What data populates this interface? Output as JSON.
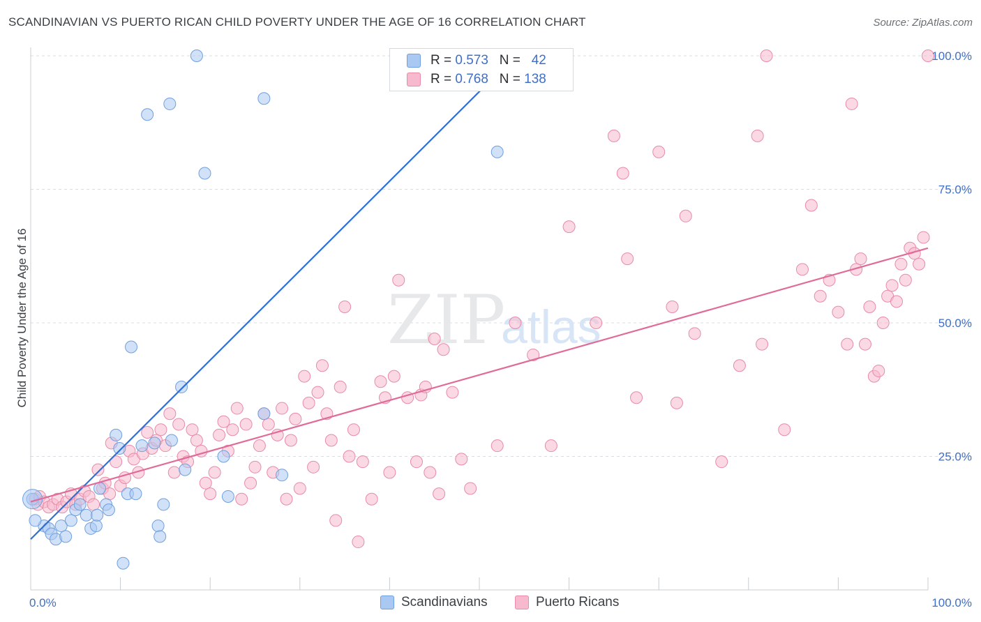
{
  "header": {
    "title": "SCANDINAVIAN VS PUERTO RICAN CHILD POVERTY UNDER THE AGE OF 16 CORRELATION CHART",
    "source": "Source: ZipAtlas.com"
  },
  "watermark": {
    "zip": "ZIP",
    "atlas": "atlas"
  },
  "legend_top": {
    "rows": [
      {
        "r_label": "R = ",
        "r_value": "0.573",
        "n_label": "N = ",
        "n_value": "42"
      },
      {
        "r_label": "R = ",
        "r_value": "0.768",
        "n_label": "N = ",
        "n_value": "138"
      }
    ]
  },
  "legend_bottom": {
    "items": [
      "Scandinavians",
      "Puerto Ricans"
    ]
  },
  "colors": {
    "blue_fill": "#a9c9f2",
    "blue_edge": "#6f9fe0",
    "blue_line": "#2f6fd6",
    "pink_fill": "#f7b9cd",
    "pink_edge": "#e88aa8",
    "pink_line": "#e06b98",
    "tick_text": "#3f6fc6",
    "grid": "#d9dce0"
  },
  "chart_data": {
    "type": "scatter",
    "title": "SCANDINAVIAN VS PUERTO RICAN CHILD POVERTY UNDER THE AGE OF 16 CORRELATION CHART",
    "xlabel": "",
    "ylabel": "Child Poverty Under the Age of 16",
    "xlim": [
      0,
      100
    ],
    "ylim": [
      0,
      100
    ],
    "x_tick_labels": [
      "0.0%",
      "100.0%"
    ],
    "y_tick_labels": [
      "25.0%",
      "50.0%",
      "75.0%",
      "100.0%"
    ],
    "y_ticks": [
      25,
      50,
      75,
      100
    ],
    "grid": true,
    "legend": "top-center",
    "series": [
      {
        "name": "Scandinavians",
        "R": 0.573,
        "N": 42,
        "trend": {
          "x": [
            0,
            54
          ],
          "y": [
            9.5,
            100
          ]
        },
        "points": [
          [
            0.2,
            17
          ],
          [
            1.5,
            12
          ],
          [
            2,
            11.5
          ],
          [
            2.3,
            10.5
          ],
          [
            2.8,
            9.5
          ],
          [
            3.4,
            12
          ],
          [
            3.9,
            10
          ],
          [
            4.5,
            13
          ],
          [
            5,
            15
          ],
          [
            5.5,
            16
          ],
          [
            6.2,
            14
          ],
          [
            6.7,
            11.5
          ],
          [
            7.3,
            12
          ],
          [
            7.4,
            14
          ],
          [
            7.7,
            19
          ],
          [
            8.4,
            16
          ],
          [
            8.7,
            15
          ],
          [
            9.5,
            29
          ],
          [
            9.9,
            26.5
          ],
          [
            10.3,
            5
          ],
          [
            10.8,
            18
          ],
          [
            11.2,
            45.5
          ],
          [
            11.7,
            18
          ],
          [
            12.4,
            27
          ],
          [
            13,
            89
          ],
          [
            13.8,
            27.5
          ],
          [
            14.2,
            12
          ],
          [
            14.4,
            10
          ],
          [
            14.8,
            16
          ],
          [
            15.5,
            91
          ],
          [
            15.7,
            28
          ],
          [
            16.8,
            38
          ],
          [
            17.2,
            22.5
          ],
          [
            18.5,
            100
          ],
          [
            19.4,
            78
          ],
          [
            21.5,
            25
          ],
          [
            22,
            17.5
          ],
          [
            26,
            33
          ],
          [
            26,
            92
          ],
          [
            28,
            21.5
          ],
          [
            52,
            82
          ],
          [
            0.5,
            13
          ]
        ]
      },
      {
        "name": "Puerto Ricans",
        "R": 0.768,
        "N": 138,
        "trend": {
          "x": [
            0,
            100
          ],
          "y": [
            16.5,
            64
          ]
        },
        "points": [
          [
            0.5,
            17
          ],
          [
            0.8,
            16
          ],
          [
            1,
            17.5
          ],
          [
            1.5,
            16.5
          ],
          [
            2,
            15.5
          ],
          [
            2.5,
            16
          ],
          [
            3,
            17
          ],
          [
            3.5,
            15.5
          ],
          [
            4,
            16.5
          ],
          [
            4.5,
            18
          ],
          [
            5,
            16
          ],
          [
            5.5,
            17
          ],
          [
            6,
            18.5
          ],
          [
            6.5,
            17.5
          ],
          [
            7,
            16
          ],
          [
            7.5,
            22.5
          ],
          [
            8,
            19
          ],
          [
            8.3,
            20
          ],
          [
            8.8,
            18
          ],
          [
            9,
            27.5
          ],
          [
            9.5,
            24
          ],
          [
            10,
            19.5
          ],
          [
            10.5,
            21
          ],
          [
            11,
            26
          ],
          [
            11.5,
            24.5
          ],
          [
            12,
            22
          ],
          [
            12.5,
            25.5
          ],
          [
            13,
            29.5
          ],
          [
            13.5,
            26.5
          ],
          [
            14,
            28
          ],
          [
            14.5,
            30
          ],
          [
            15,
            27
          ],
          [
            15.5,
            33
          ],
          [
            16,
            22
          ],
          [
            16.5,
            31
          ],
          [
            17,
            25
          ],
          [
            17.5,
            24
          ],
          [
            18,
            30
          ],
          [
            18.5,
            28
          ],
          [
            19,
            26
          ],
          [
            19.5,
            20
          ],
          [
            20,
            18
          ],
          [
            20.5,
            22
          ],
          [
            21,
            29
          ],
          [
            21.5,
            31.5
          ],
          [
            22,
            26
          ],
          [
            22.5,
            30
          ],
          [
            23,
            34
          ],
          [
            23.5,
            17
          ],
          [
            24,
            31
          ],
          [
            24.5,
            20
          ],
          [
            25,
            23
          ],
          [
            25.5,
            27
          ],
          [
            26,
            33
          ],
          [
            26.5,
            31
          ],
          [
            27,
            22
          ],
          [
            27.5,
            29
          ],
          [
            28,
            34
          ],
          [
            28.5,
            17
          ],
          [
            29,
            28
          ],
          [
            29.5,
            32
          ],
          [
            30,
            19
          ],
          [
            30.5,
            40
          ],
          [
            31,
            35
          ],
          [
            31.5,
            23
          ],
          [
            32,
            37
          ],
          [
            32.5,
            42
          ],
          [
            33,
            33
          ],
          [
            33.5,
            28
          ],
          [
            34,
            13
          ],
          [
            34.5,
            38
          ],
          [
            35,
            53
          ],
          [
            35.5,
            25
          ],
          [
            36,
            30
          ],
          [
            36.5,
            9
          ],
          [
            37,
            24
          ],
          [
            38,
            17
          ],
          [
            39,
            39
          ],
          [
            39.5,
            36
          ],
          [
            40,
            22
          ],
          [
            40.5,
            40
          ],
          [
            41,
            58
          ],
          [
            42,
            36
          ],
          [
            43,
            24
          ],
          [
            43.5,
            36.5
          ],
          [
            44,
            38
          ],
          [
            44.5,
            22
          ],
          [
            45,
            47
          ],
          [
            45.5,
            18
          ],
          [
            46,
            45
          ],
          [
            47,
            37
          ],
          [
            48,
            24.5
          ],
          [
            49,
            19
          ],
          [
            52,
            27
          ],
          [
            54,
            50
          ],
          [
            65,
            85
          ],
          [
            66,
            78
          ],
          [
            66.5,
            62
          ],
          [
            67.5,
            36
          ],
          [
            70,
            82
          ],
          [
            71.5,
            53
          ],
          [
            73,
            70
          ],
          [
            74,
            48
          ],
          [
            77,
            24
          ],
          [
            79,
            42
          ],
          [
            81,
            85
          ],
          [
            81.5,
            46
          ],
          [
            82,
            100
          ],
          [
            84,
            30
          ],
          [
            86,
            60
          ],
          [
            87,
            72
          ],
          [
            88,
            55
          ],
          [
            89,
            58
          ],
          [
            90,
            52
          ],
          [
            91,
            46
          ],
          [
            91.5,
            91
          ],
          [
            92,
            60
          ],
          [
            92.5,
            62
          ],
          [
            93,
            46
          ],
          [
            93.5,
            53
          ],
          [
            94,
            40
          ],
          [
            94.5,
            41
          ],
          [
            95,
            50
          ],
          [
            95.5,
            55
          ],
          [
            96,
            57
          ],
          [
            96.5,
            54
          ],
          [
            97,
            61
          ],
          [
            97.5,
            58
          ],
          [
            98,
            64
          ],
          [
            98.5,
            63
          ],
          [
            99,
            61
          ],
          [
            99.5,
            66
          ],
          [
            100,
            100
          ],
          [
            60,
            68
          ],
          [
            63,
            50
          ],
          [
            72,
            35
          ],
          [
            56,
            44
          ],
          [
            58,
            27
          ]
        ]
      }
    ]
  }
}
